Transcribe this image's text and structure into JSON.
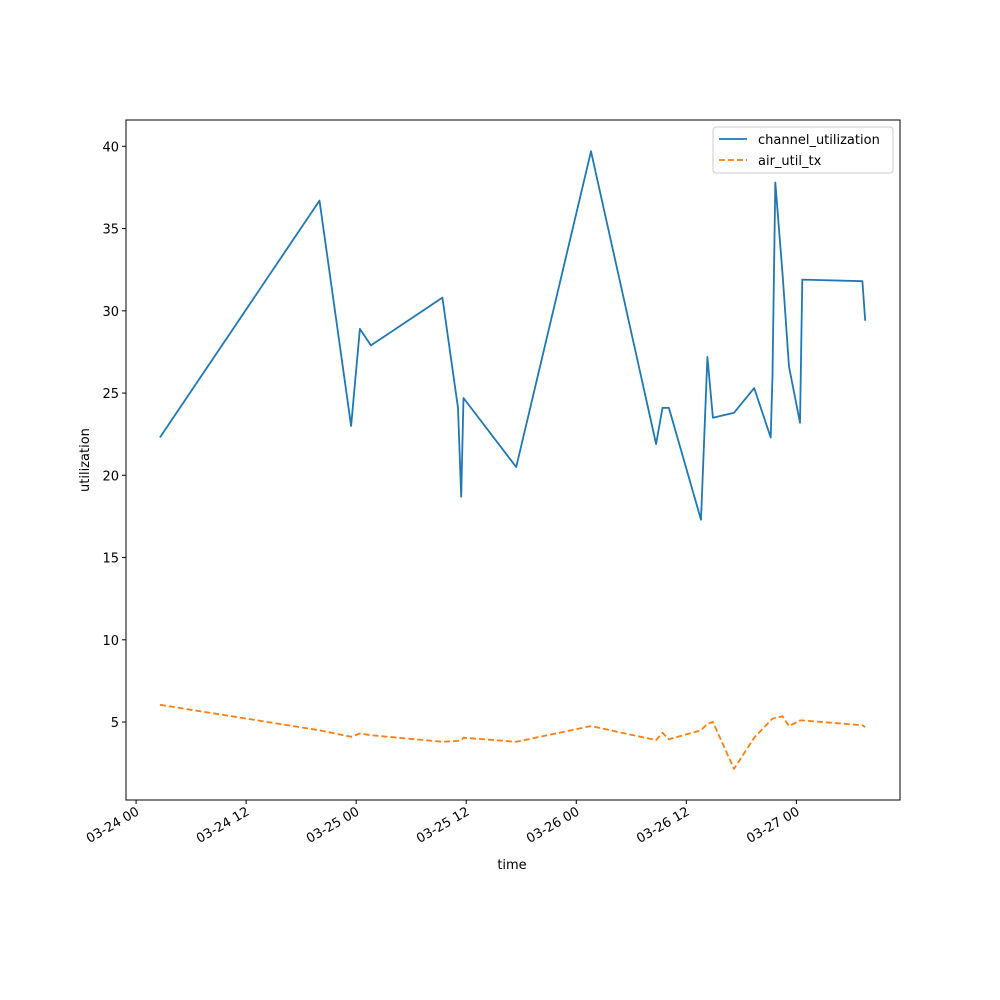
{
  "chart_data": {
    "type": "line",
    "title": "",
    "xlabel": "time",
    "ylabel": "utilization",
    "xlim_hours_from_0324": [
      -1.1,
      83.3
    ],
    "ylim": [
      0.26,
      41.6
    ],
    "yticks": [
      5,
      10,
      15,
      20,
      25,
      30,
      35,
      40
    ],
    "xticks": [
      {
        "label": "03-24 00",
        "hours": 0
      },
      {
        "label": "03-24 12",
        "hours": 12
      },
      {
        "label": "03-25 00",
        "hours": 24
      },
      {
        "label": "03-25 12",
        "hours": 36
      },
      {
        "label": "03-26 00",
        "hours": 48
      },
      {
        "label": "03-26 12",
        "hours": 60
      },
      {
        "label": "03-27 00",
        "hours": 72
      }
    ],
    "legend_position": "top-right",
    "x_hours": [
      2.6,
      20.0,
      23.45,
      24.4,
      25.6,
      33.4,
      35.1,
      35.45,
      35.7,
      41.45,
      49.6,
      56.7,
      57.4,
      58.1,
      61.6,
      62.3,
      62.9,
      65.2,
      67.4,
      69.2,
      69.4,
      69.7,
      70.5,
      71.2,
      72.4,
      72.65,
      79.2,
      79.5
    ],
    "series": [
      {
        "name": "channel_utilization",
        "color": "#1f77b4",
        "style": "solid",
        "values": [
          22.3,
          36.7,
          23.0,
          28.9,
          27.9,
          30.8,
          24.1,
          18.7,
          24.7,
          20.5,
          39.7,
          21.9,
          24.1,
          24.1,
          17.3,
          27.2,
          23.5,
          23.8,
          25.3,
          22.3,
          26.1,
          37.8,
          32.2,
          26.6,
          23.2,
          31.9,
          31.8,
          29.4
        ]
      },
      {
        "name": "air_util_tx",
        "color": "#ff7f0e",
        "style": "dashed",
        "values": [
          6.05,
          4.5,
          4.1,
          4.3,
          4.2,
          3.8,
          3.85,
          3.9,
          4.05,
          3.8,
          4.75,
          3.9,
          4.35,
          3.95,
          4.5,
          4.9,
          5.0,
          2.15,
          4.05,
          5.1,
          5.2,
          5.25,
          5.35,
          4.75,
          5.1,
          5.1,
          4.8,
          4.7
        ]
      }
    ]
  }
}
